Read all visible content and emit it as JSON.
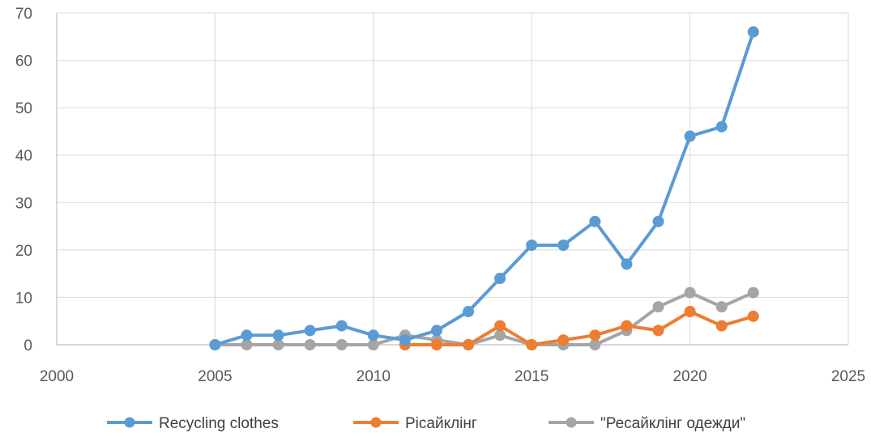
{
  "chart_data": {
    "type": "line",
    "title": "",
    "xlabel": "",
    "ylabel": "",
    "xlim": [
      2000,
      2025
    ],
    "ylim": [
      0,
      70
    ],
    "x_ticks": [
      2000,
      2005,
      2010,
      2015,
      2020,
      2025
    ],
    "y_ticks": [
      0,
      10,
      20,
      30,
      40,
      50,
      60,
      70
    ],
    "grid": true,
    "legend_position": "bottom",
    "series": [
      {
        "name": "Recycling clothes",
        "color": "#5B9BD5",
        "x": [
          2005,
          2006,
          2007,
          2008,
          2009,
          2010,
          2011,
          2012,
          2013,
          2014,
          2015,
          2016,
          2017,
          2018,
          2019,
          2020,
          2021,
          2022
        ],
        "y": [
          0,
          2,
          2,
          3,
          4,
          2,
          1,
          3,
          7,
          14,
          21,
          21,
          26,
          17,
          26,
          44,
          46,
          66
        ]
      },
      {
        "name": "Рісайклінг",
        "color": "#ED7D31",
        "x": [
          2011,
          2012,
          2013,
          2014,
          2015,
          2016,
          2017,
          2018,
          2019,
          2020,
          2021,
          2022
        ],
        "y": [
          0,
          0,
          0,
          4,
          0,
          1,
          2,
          4,
          3,
          7,
          4,
          6
        ]
      },
      {
        "name": "\"Ресайклінг одежди\"",
        "color": "#A5A5A5",
        "x": [
          2005,
          2006,
          2007,
          2008,
          2009,
          2010,
          2011,
          2012,
          2013,
          2014,
          2015,
          2016,
          2017,
          2018,
          2019,
          2020,
          2021,
          2022
        ],
        "y": [
          0,
          0,
          0,
          0,
          0,
          0,
          2,
          1,
          0,
          2,
          0,
          0,
          0,
          3,
          8,
          11,
          8,
          11
        ]
      }
    ]
  }
}
